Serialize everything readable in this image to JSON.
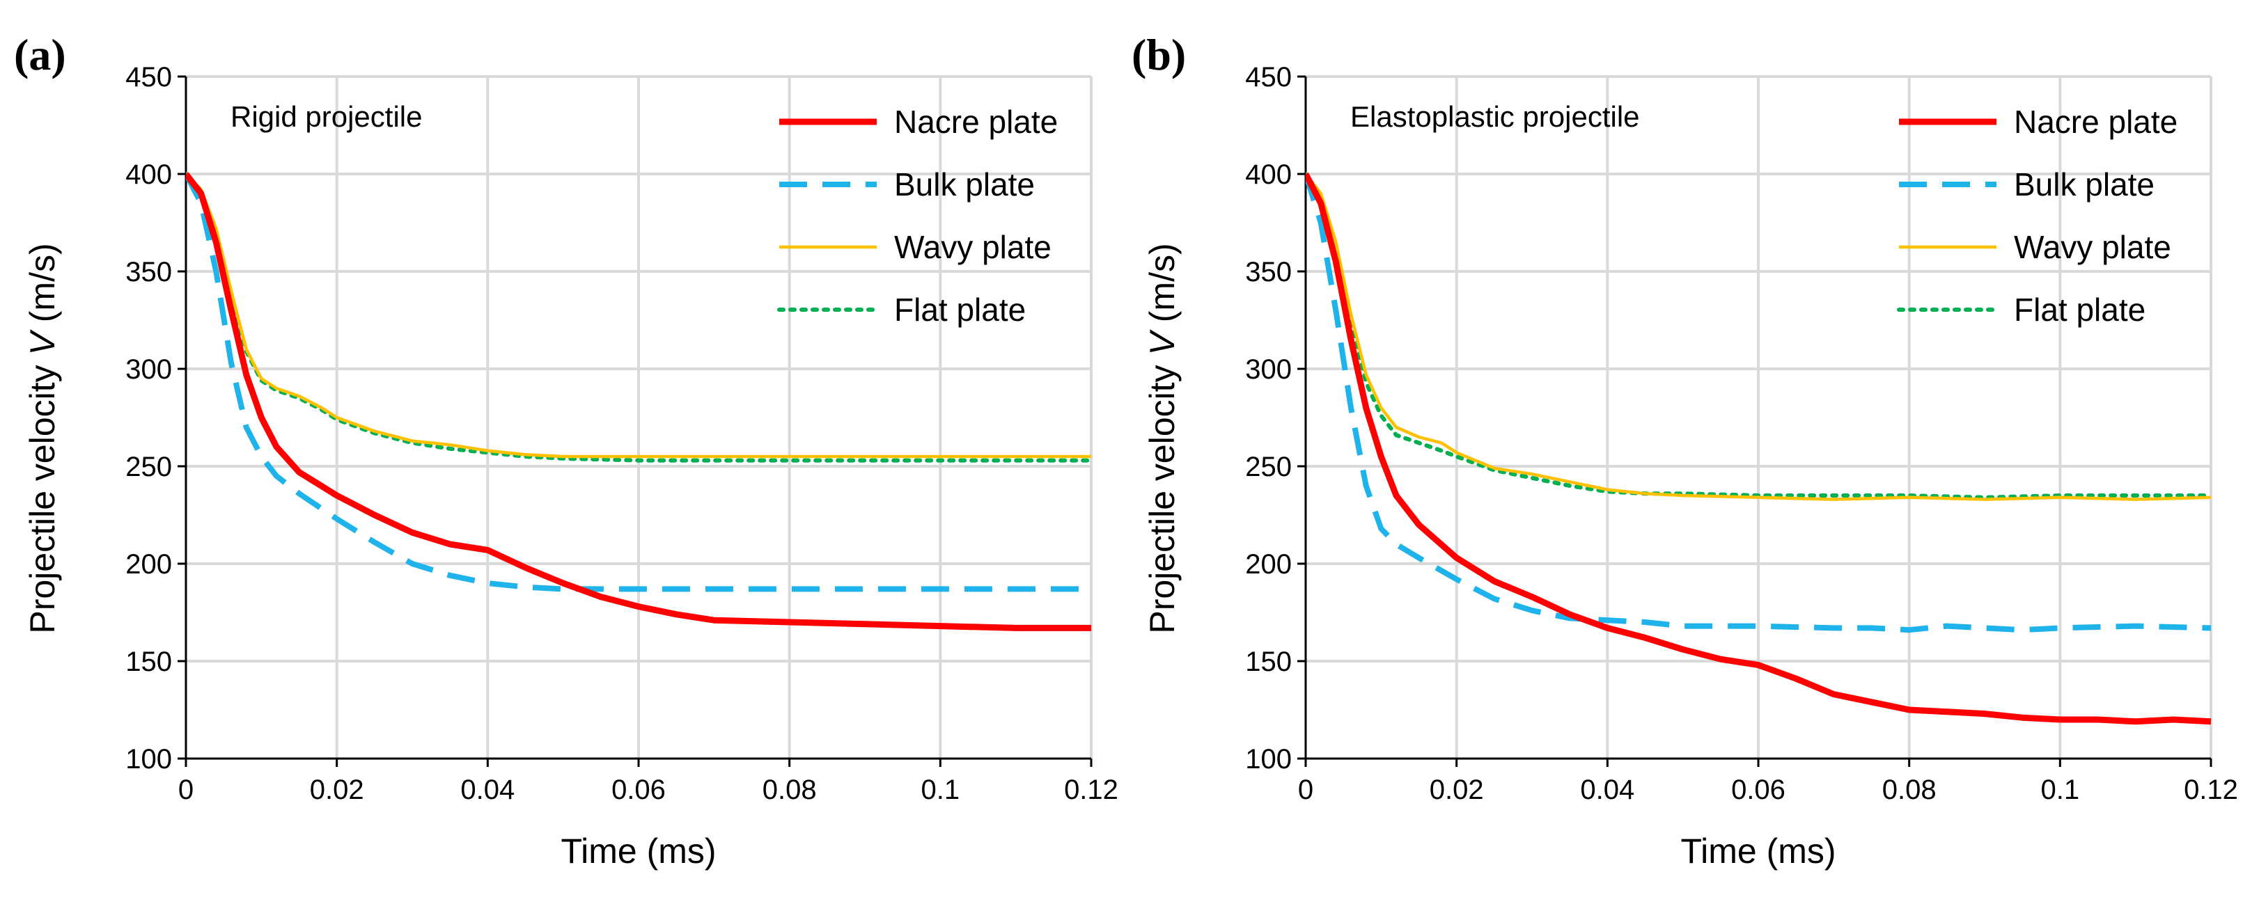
{
  "chart_data": [
    {
      "type": "line",
      "panel_label": "(a)",
      "annotation": "Rigid projectile",
      "xlabel": "Time (ms)",
      "ylabel_prefix": "Projectile velocity ",
      "ylabel_var": "V",
      "ylabel_suffix": " (m/s)",
      "xlim": [
        0,
        0.12
      ],
      "ylim": [
        100,
        450
      ],
      "xticks": [
        0,
        0.02,
        0.04,
        0.06,
        0.08,
        0.1,
        0.12
      ],
      "xtick_labels": [
        "0",
        "0.02",
        "0.04",
        "0.06",
        "0.08",
        "0.1",
        "0.12"
      ],
      "yticks": [
        100,
        150,
        200,
        250,
        300,
        350,
        400,
        450
      ],
      "ytick_labels": [
        "100",
        "150",
        "200",
        "250",
        "300",
        "350",
        "400",
        "450"
      ],
      "grid": true,
      "legend_position": "top-right",
      "series": [
        {
          "name": "Nacre plate",
          "style": "solid-thick",
          "color": "#ff0000",
          "x": [
            0,
            0.002,
            0.004,
            0.006,
            0.008,
            0.01,
            0.012,
            0.015,
            0.02,
            0.025,
            0.03,
            0.035,
            0.04,
            0.045,
            0.05,
            0.055,
            0.06,
            0.065,
            0.07,
            0.08,
            0.09,
            0.1,
            0.11,
            0.12
          ],
          "y": [
            400,
            390,
            365,
            330,
            297,
            275,
            260,
            247,
            235,
            225,
            216,
            210,
            207,
            198,
            190,
            183,
            178,
            174,
            171,
            170,
            169,
            168,
            167,
            167
          ]
        },
        {
          "name": "Bulk plate",
          "style": "dashed",
          "color": "#1fb3eb",
          "x": [
            0,
            0.002,
            0.004,
            0.006,
            0.008,
            0.01,
            0.012,
            0.015,
            0.02,
            0.025,
            0.03,
            0.035,
            0.04,
            0.045,
            0.05,
            0.06,
            0.07,
            0.08,
            0.09,
            0.1,
            0.11,
            0.12
          ],
          "y": [
            400,
            385,
            350,
            303,
            270,
            255,
            245,
            236,
            223,
            211,
            200,
            194,
            190,
            188,
            187,
            187,
            187,
            187,
            187,
            187,
            187,
            187
          ]
        },
        {
          "name": "Wavy plate",
          "style": "solid-thin",
          "color": "#ffc000",
          "x": [
            0,
            0.002,
            0.004,
            0.006,
            0.008,
            0.01,
            0.012,
            0.015,
            0.018,
            0.02,
            0.025,
            0.03,
            0.035,
            0.04,
            0.045,
            0.05,
            0.06,
            0.07,
            0.08,
            0.09,
            0.1,
            0.11,
            0.12
          ],
          "y": [
            400,
            392,
            372,
            340,
            310,
            295,
            290,
            286,
            280,
            275,
            268,
            263,
            261,
            258,
            256,
            255,
            255,
            255,
            255,
            255,
            255,
            255,
            255
          ]
        },
        {
          "name": "Flat plate",
          "style": "dotted",
          "color": "#00b050",
          "x": [
            0,
            0.002,
            0.004,
            0.006,
            0.008,
            0.01,
            0.012,
            0.015,
            0.018,
            0.02,
            0.025,
            0.03,
            0.035,
            0.04,
            0.045,
            0.05,
            0.06,
            0.07,
            0.08,
            0.09,
            0.1,
            0.11,
            0.12
          ],
          "y": [
            400,
            391,
            370,
            338,
            309,
            294,
            289,
            285,
            279,
            274,
            267,
            262,
            259,
            257,
            255,
            254,
            253,
            253,
            253,
            253,
            253,
            253,
            253
          ]
        }
      ]
    },
    {
      "type": "line",
      "panel_label": "(b)",
      "annotation": "Elastoplastic projectile",
      "xlabel": "Time (ms)",
      "ylabel_prefix": "Projectile velocity ",
      "ylabel_var": "V",
      "ylabel_suffix": " (m/s)",
      "xlim": [
        0,
        0.12
      ],
      "ylim": [
        100,
        450
      ],
      "xticks": [
        0,
        0.02,
        0.04,
        0.06,
        0.08,
        0.1,
        0.12
      ],
      "xtick_labels": [
        "0",
        "0.02",
        "0.04",
        "0.06",
        "0.08",
        "0.1",
        "0.12"
      ],
      "yticks": [
        100,
        150,
        200,
        250,
        300,
        350,
        400,
        450
      ],
      "ytick_labels": [
        "100",
        "150",
        "200",
        "250",
        "300",
        "350",
        "400",
        "450"
      ],
      "grid": true,
      "legend_position": "top-right",
      "series": [
        {
          "name": "Nacre plate",
          "style": "solid-thick",
          "color": "#ff0000",
          "x": [
            0,
            0.002,
            0.004,
            0.006,
            0.008,
            0.01,
            0.012,
            0.015,
            0.02,
            0.025,
            0.03,
            0.035,
            0.04,
            0.045,
            0.05,
            0.055,
            0.06,
            0.065,
            0.07,
            0.075,
            0.08,
            0.085,
            0.09,
            0.095,
            0.1,
            0.105,
            0.11,
            0.115,
            0.12
          ],
          "y": [
            400,
            385,
            355,
            315,
            280,
            255,
            235,
            220,
            203,
            191,
            183,
            174,
            167,
            162,
            156,
            151,
            148,
            141,
            133,
            129,
            125,
            124,
            123,
            121,
            120,
            120,
            119,
            120,
            119
          ]
        },
        {
          "name": "Bulk plate",
          "style": "dashed",
          "color": "#1fb3eb",
          "x": [
            0,
            0.002,
            0.004,
            0.006,
            0.008,
            0.01,
            0.012,
            0.015,
            0.02,
            0.025,
            0.03,
            0.035,
            0.04,
            0.045,
            0.05,
            0.06,
            0.07,
            0.075,
            0.08,
            0.085,
            0.09,
            0.095,
            0.1,
            0.11,
            0.12
          ],
          "y": [
            400,
            375,
            330,
            280,
            240,
            218,
            210,
            203,
            192,
            182,
            176,
            172,
            171,
            170,
            168,
            168,
            167,
            167,
            166,
            168,
            167,
            166,
            167,
            168,
            167
          ]
        },
        {
          "name": "Wavy plate",
          "style": "solid-thin",
          "color": "#ffc000",
          "x": [
            0,
            0.002,
            0.004,
            0.006,
            0.008,
            0.01,
            0.012,
            0.015,
            0.018,
            0.02,
            0.025,
            0.03,
            0.035,
            0.04,
            0.045,
            0.05,
            0.06,
            0.07,
            0.08,
            0.09,
            0.1,
            0.11,
            0.12
          ],
          "y": [
            400,
            390,
            365,
            328,
            297,
            280,
            270,
            265,
            262,
            257,
            249,
            246,
            242,
            238,
            236,
            235,
            234,
            233,
            234,
            233,
            234,
            233,
            234
          ]
        },
        {
          "name": "Flat plate",
          "style": "dotted",
          "color": "#00b050",
          "x": [
            0,
            0.002,
            0.004,
            0.006,
            0.008,
            0.01,
            0.012,
            0.015,
            0.018,
            0.02,
            0.025,
            0.03,
            0.035,
            0.04,
            0.045,
            0.05,
            0.06,
            0.07,
            0.08,
            0.09,
            0.1,
            0.11,
            0.12
          ],
          "y": [
            400,
            389,
            362,
            325,
            293,
            276,
            266,
            262,
            258,
            255,
            248,
            244,
            240,
            237,
            236,
            236,
            235,
            235,
            235,
            234,
            235,
            235,
            235
          ]
        }
      ]
    }
  ]
}
